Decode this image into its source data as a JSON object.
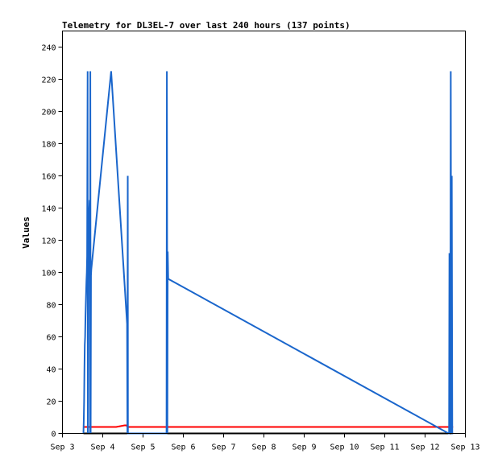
{
  "chart_data": {
    "type": "line",
    "title": "Telemetry for DL3EL-7 over last 240 hours (137 points)",
    "xlabel": "",
    "ylabel": "Values",
    "x_unit": "hours since Sep 3 00:00",
    "xlim": [
      0,
      240
    ],
    "ylim": [
      0,
      250
    ],
    "x_ticks": [
      {
        "value": 0,
        "label": "Sep 3"
      },
      {
        "value": 24,
        "label": "Sep 4"
      },
      {
        "value": 48,
        "label": "Sep 5"
      },
      {
        "value": 72,
        "label": "Sep 6"
      },
      {
        "value": 96,
        "label": "Sep 7"
      },
      {
        "value": 120,
        "label": "Sep 8"
      },
      {
        "value": 144,
        "label": "Sep 9"
      },
      {
        "value": 168,
        "label": "Sep 10"
      },
      {
        "value": 192,
        "label": "Sep 11"
      },
      {
        "value": 216,
        "label": "Sep 12"
      },
      {
        "value": 240,
        "label": "Sep 13"
      }
    ],
    "y_ticks": [
      0,
      20,
      40,
      60,
      80,
      100,
      120,
      140,
      160,
      180,
      200,
      220,
      240
    ],
    "grid": false,
    "legend": false,
    "series": [
      {
        "color": "#000000",
        "points": [
          [
            12.5,
            0
          ],
          [
            13.0,
            0
          ],
          [
            16.0,
            0
          ],
          [
            17.0,
            0
          ],
          [
            20.0,
            0
          ],
          [
            24.0,
            0
          ],
          [
            37.5,
            0
          ],
          [
            60.0,
            0
          ],
          [
            62.0,
            0
          ],
          [
            100.0,
            0
          ],
          [
            150.0,
            0
          ],
          [
            200.0,
            0
          ],
          [
            232.7,
            0
          ]
        ]
      },
      {
        "color": "#ff0000",
        "points": [
          [
            12.5,
            4
          ],
          [
            16.0,
            4
          ],
          [
            20.0,
            4
          ],
          [
            24.0,
            4
          ],
          [
            32.0,
            4
          ],
          [
            37.0,
            5
          ],
          [
            38.0,
            5
          ],
          [
            39.0,
            4
          ],
          [
            60.0,
            4
          ],
          [
            62.0,
            4
          ],
          [
            80.0,
            4
          ],
          [
            120.0,
            4
          ],
          [
            160.0,
            4
          ],
          [
            200.0,
            4
          ],
          [
            230.0,
            4
          ],
          [
            232.7,
            4
          ]
        ]
      },
      {
        "color": "#1a66cc",
        "points": [
          [
            12.5,
            0
          ],
          [
            12.7,
            8
          ],
          [
            12.9,
            20
          ],
          [
            13.1,
            40
          ],
          [
            13.3,
            55
          ],
          [
            13.5,
            60
          ],
          [
            13.7,
            72
          ],
          [
            13.9,
            80
          ],
          [
            14.1,
            88
          ],
          [
            14.3,
            95
          ],
          [
            14.5,
            100
          ],
          [
            14.7,
            110
          ],
          [
            15.0,
            225
          ],
          [
            15.1,
            0
          ],
          [
            15.3,
            100
          ],
          [
            15.5,
            110
          ],
          [
            15.8,
            130
          ],
          [
            16.0,
            140
          ],
          [
            16.2,
            145
          ],
          [
            16.4,
            0
          ],
          [
            16.6,
            225
          ],
          [
            16.8,
            0
          ],
          [
            17.0,
            98
          ],
          [
            17.2,
            102
          ],
          [
            29.0,
            225
          ],
          [
            38.5,
            68
          ],
          [
            38.7,
            0
          ],
          [
            38.9,
            160
          ],
          [
            39.0,
            0
          ],
          [
            62.0,
            0
          ],
          [
            62.2,
            225
          ],
          [
            62.5,
            0
          ],
          [
            62.7,
            113
          ],
          [
            63.0,
            96
          ],
          [
            230.0,
            0
          ],
          [
            230.3,
            0
          ],
          [
            230.5,
            112
          ],
          [
            231.0,
            0
          ],
          [
            231.3,
            225
          ],
          [
            231.6,
            0
          ],
          [
            231.9,
            160
          ],
          [
            232.2,
            0
          ],
          [
            232.5,
            0
          ]
        ]
      }
    ]
  }
}
